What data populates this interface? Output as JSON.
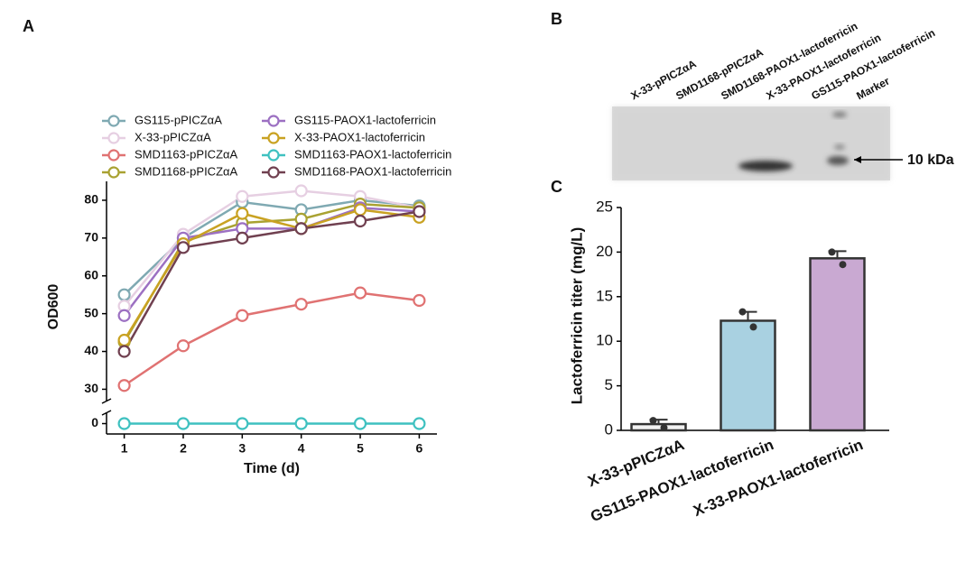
{
  "panels": [
    "A",
    "B",
    "C"
  ],
  "gel": {
    "lanes": [
      "X-33-pPICZαA",
      "SMD1168-pPICZαA",
      "SMD1168-PAOX1-lactoferricin",
      "X-33-PAOX1-lactoferricin",
      "GS115-PAOX1-lactoferricin",
      "Marker"
    ],
    "annotation": "10 kDa"
  },
  "chart_data": [
    {
      "type": "line",
      "x_label": "Time (d)",
      "y_label": "OD600",
      "x": [
        1,
        2,
        3,
        4,
        5,
        6
      ],
      "xlim": [
        0.7,
        6.3
      ],
      "xticks": [
        1,
        2,
        3,
        4,
        5,
        6
      ],
      "ylim": [
        -3,
        85
      ],
      "ybreak": [
        3,
        27
      ],
      "yticks": [
        0,
        30,
        40,
        50,
        60,
        70,
        80
      ],
      "series": [
        {
          "name": "GS115-pPICZαA",
          "color": "#7fa9b2",
          "values": [
            55,
            70,
            79.5,
            77.5,
            80,
            78.5
          ]
        },
        {
          "name": "X-33-pPICZαA",
          "color": "#e6cfe2",
          "values": [
            52,
            71,
            81,
            82.5,
            81,
            78
          ]
        },
        {
          "name": "SMD1163-pPICZαA",
          "color": "#e07272",
          "values": [
            31,
            41.5,
            49.5,
            52.5,
            55.5,
            53.5
          ]
        },
        {
          "name": "SMD1168-pPICZαA",
          "color": "#a9a232",
          "values": [
            42.5,
            69,
            74,
            75,
            79,
            78
          ]
        },
        {
          "name": "GS115-PAOX1-lactoferricin",
          "color": "#9c70c2",
          "values": [
            49.5,
            70,
            72.5,
            72.5,
            78,
            77
          ]
        },
        {
          "name": "X-33-PAOX1-lactoferricin",
          "color": "#c9a222",
          "values": [
            43,
            68.5,
            76.5,
            72.5,
            77.5,
            75.5
          ]
        },
        {
          "name": "SMD1163-PAOX1-lactoferricin",
          "color": "#3fc1c0",
          "values": [
            0,
            0,
            0,
            0,
            0,
            0
          ]
        },
        {
          "name": "SMD1168-PAOX1-lactoferricin",
          "color": "#704050",
          "values": [
            40,
            67.5,
            70,
            72.5,
            74.5,
            77
          ]
        }
      ]
    },
    {
      "type": "bar",
      "y_label": "Lactoferricin titer (mg/L)",
      "categories": [
        "X-33-pPICZαA",
        "GS115-PAOX1-lactoferricin",
        "X-33-PAOX1-lactoferricin"
      ],
      "values": [
        0.7,
        12.3,
        19.3
      ],
      "errors": [
        0.5,
        1.0,
        0.8
      ],
      "colors": [
        "#f2f2f2",
        "#a9d1e1",
        "#c9a9d2"
      ],
      "points": [
        [
          1.1,
          0.3
        ],
        [
          13.3,
          11.6
        ],
        [
          20,
          18.6
        ]
      ],
      "ylim": [
        0,
        25
      ],
      "yticks": [
        0,
        5,
        10,
        15,
        20,
        25
      ]
    }
  ]
}
